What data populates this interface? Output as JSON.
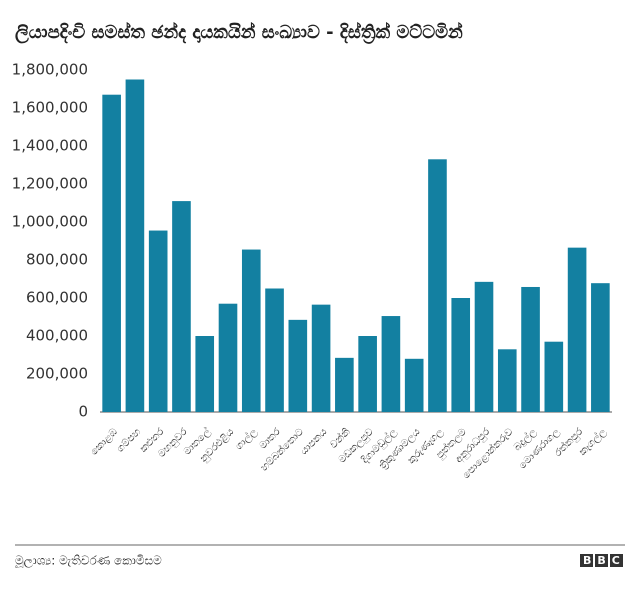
{
  "chart_data": {
    "type": "bar",
    "title": "ලියාපදිංචි සමස්ත ඡන්ද දායකයින් සංඛ්‍යාව - දිස්ත්‍රික් මට්ටමින්",
    "categories": [
      "කොළඹ",
      "ගම්පහ",
      "කළුතර",
      "මහනුවර",
      "මාතලේ",
      "නුවරඑළිය",
      "ගාල්ල",
      "මාතර",
      "හම්බන්තොට",
      "යාපනය",
      "වන්නි",
      "මඩකලපුව",
      "දිගාමඩුල්ල",
      "ත්‍රිකුණාමලය",
      "කුරුණෑගල",
      "පුත්තලම",
      "අනුරාධපුර",
      "පොළොන්නරුව",
      "බදුල්ල",
      "මොණරාගල",
      "රත්නපුර",
      "කෑගල්ල"
    ],
    "values": [
      1670000,
      1750000,
      955000,
      1110000,
      400000,
      570000,
      855000,
      650000,
      485000,
      565000,
      285000,
      400000,
      505000,
      280000,
      1330000,
      600000,
      685000,
      330000,
      658000,
      370000,
      865000,
      678000
    ],
    "color": "#1380a1",
    "ylim": [
      0,
      1800000
    ],
    "yticks": [
      0,
      {
        "value": 200000,
        "label": "200,000"
      },
      {
        "value": 400000,
        "label": "400,000"
      },
      {
        "value": 600000,
        "label": "600,000"
      },
      {
        "value": 800000,
        "label": "800,000"
      },
      {
        "value": 1000000,
        "label": "1,000,000"
      },
      {
        "value": 1200000,
        "label": "1,200,000"
      },
      {
        "value": 1400000,
        "label": "1,400,000"
      },
      {
        "value": 1600000,
        "label": "1,600,000"
      },
      {
        "value": 1800000,
        "label": "1,800,000"
      }
    ],
    "grid": false,
    "source": "මූලාශ්‍ය: මැතිවරණ කොමිසම",
    "logo": "BBC"
  }
}
